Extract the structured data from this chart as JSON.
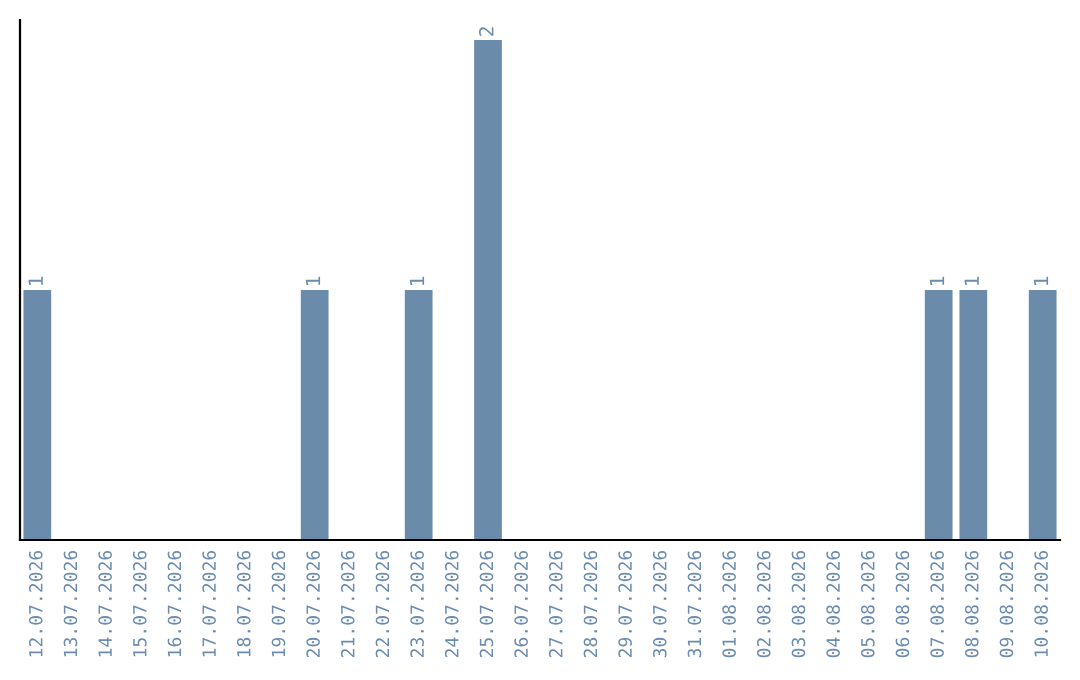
{
  "chart_data": {
    "type": "bar",
    "categories": [
      "12.07.2026",
      "13.07.2026",
      "14.07.2026",
      "15.07.2026",
      "16.07.2026",
      "17.07.2026",
      "18.07.2026",
      "19.07.2026",
      "20.07.2026",
      "21.07.2026",
      "22.07.2026",
      "23.07.2026",
      "24.07.2026",
      "25.07.2026",
      "26.07.2026",
      "27.07.2026",
      "28.07.2026",
      "29.07.2026",
      "30.07.2026",
      "31.07.2026",
      "01.08.2026",
      "02.08.2026",
      "03.08.2026",
      "04.08.2026",
      "05.08.2026",
      "06.08.2026",
      "07.08.2026",
      "08.08.2026",
      "09.08.2026",
      "10.08.2026"
    ],
    "values": [
      1,
      0,
      0,
      0,
      0,
      0,
      0,
      0,
      1,
      0,
      0,
      1,
      0,
      2,
      0,
      0,
      0,
      0,
      0,
      0,
      0,
      0,
      0,
      0,
      0,
      0,
      1,
      1,
      0,
      1
    ],
    "value_labels": [
      "1",
      null,
      null,
      null,
      null,
      null,
      null,
      null,
      "1",
      null,
      null,
      "1",
      null,
      "2",
      null,
      null,
      null,
      null,
      null,
      null,
      null,
      null,
      null,
      null,
      null,
      null,
      "1",
      "1",
      null,
      "1"
    ],
    "color": "#6a8caa",
    "ylim": [
      0,
      2.08
    ],
    "tick_labels": "x",
    "grid": false,
    "legend": false
  }
}
